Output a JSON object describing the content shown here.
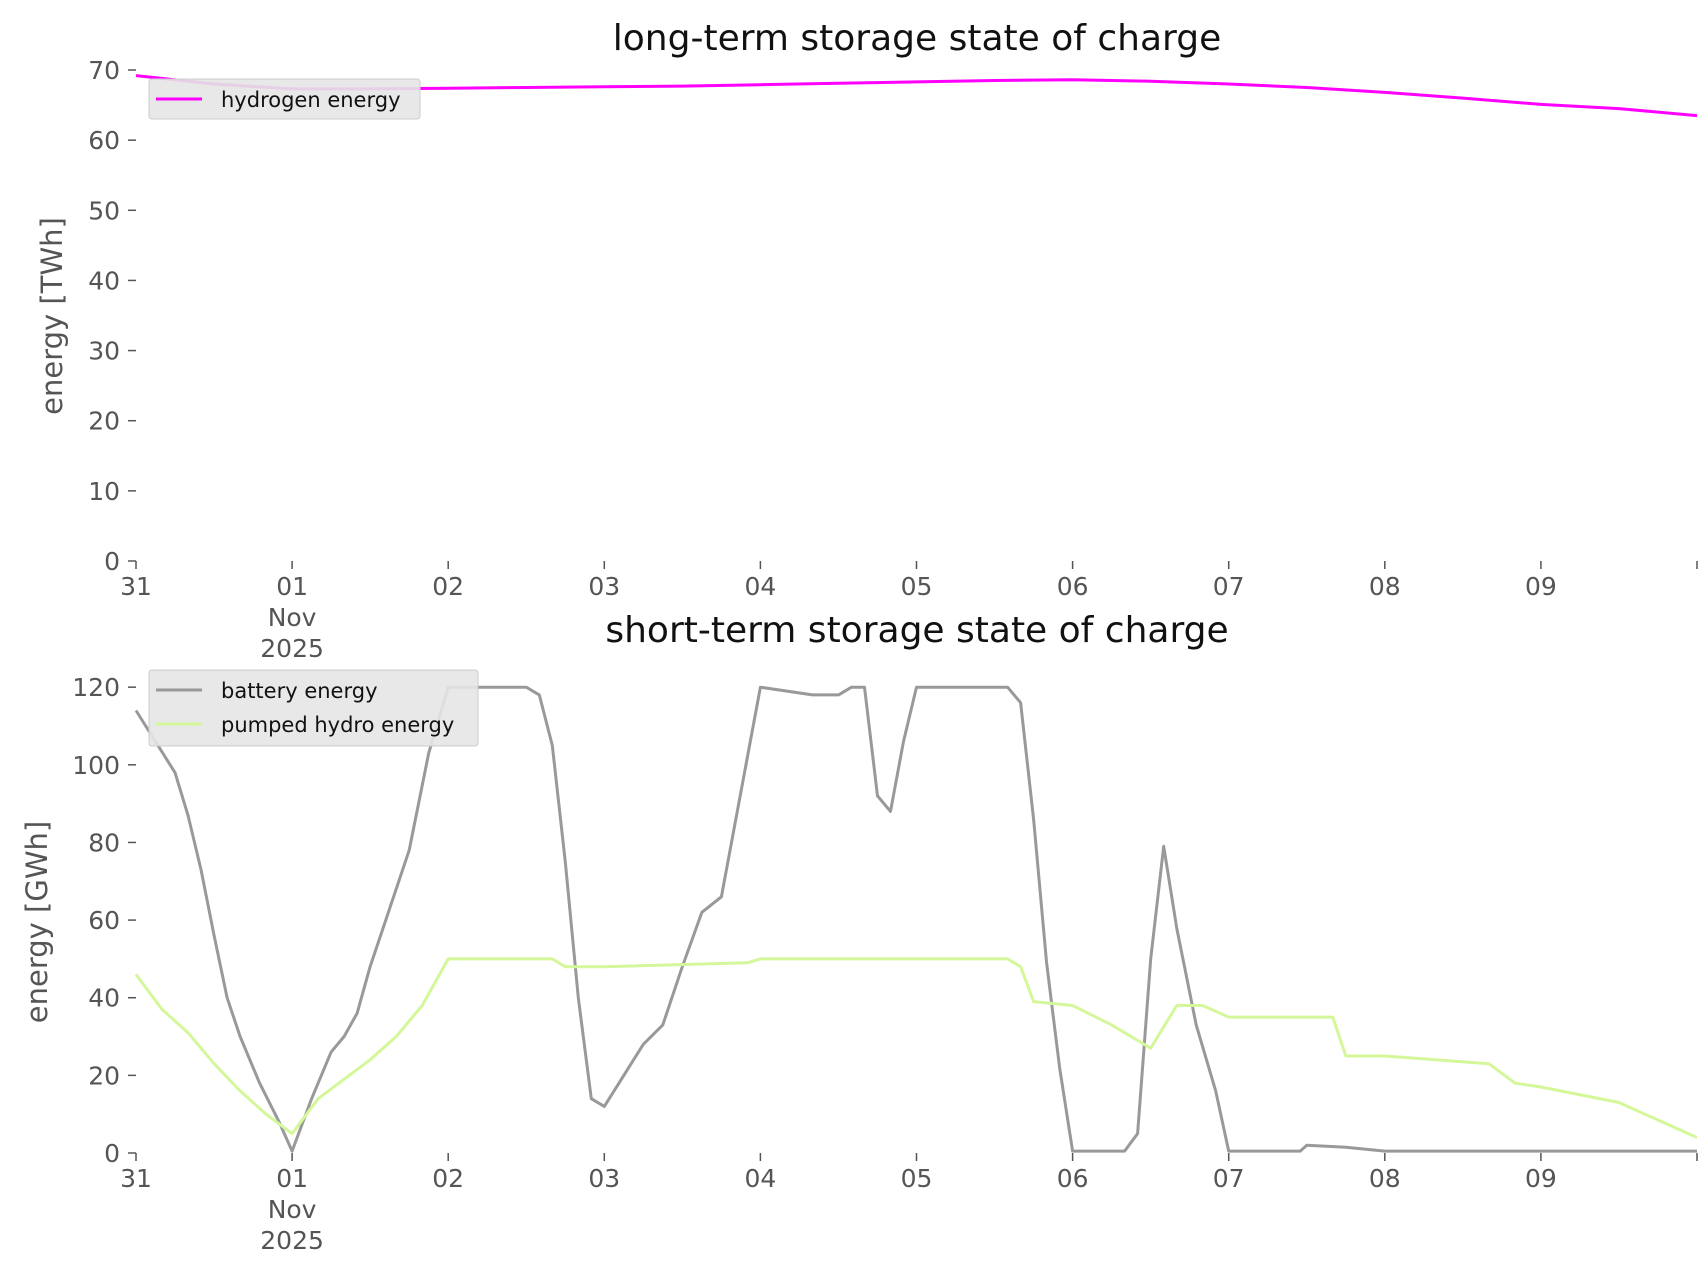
{
  "chart_data": [
    {
      "type": "line",
      "title": "long-term storage state of charge",
      "ylabel": "energy [TWh]",
      "xlabel": "",
      "ylim": [
        0,
        70
      ],
      "yticks": [
        0,
        10,
        20,
        30,
        40,
        50,
        60,
        70
      ],
      "xlim": [
        "2025-10-31",
        "2025-11-10"
      ],
      "xticks": [
        {
          "x": "2025-10-31",
          "label": "31"
        },
        {
          "x": "2025-11-01",
          "label": "01\nNov\n2025"
        },
        {
          "x": "2025-11-02",
          "label": "02"
        },
        {
          "x": "2025-11-03",
          "label": "03"
        },
        {
          "x": "2025-11-04",
          "label": "04"
        },
        {
          "x": "2025-11-05",
          "label": "05"
        },
        {
          "x": "2025-11-06",
          "label": "06"
        },
        {
          "x": "2025-11-07",
          "label": "07"
        },
        {
          "x": "2025-11-08",
          "label": "08"
        },
        {
          "x": "2025-11-09",
          "label": "09"
        },
        {
          "x": "2025-11-10",
          "label": ""
        }
      ],
      "grid": false,
      "legend": "top-left",
      "series": [
        {
          "name": "hydrogen energy",
          "color": "#ff00ff",
          "x": [
            "2025-10-31T00:00",
            "2025-10-31T12:00",
            "2025-11-01T00:00",
            "2025-11-01T12:00",
            "2025-11-02T00:00",
            "2025-11-02T12:00",
            "2025-11-03T00:00",
            "2025-11-03T12:00",
            "2025-11-04T00:00",
            "2025-11-04T12:00",
            "2025-11-05T00:00",
            "2025-11-05T12:00",
            "2025-11-06T00:00",
            "2025-11-06T12:00",
            "2025-11-07T00:00",
            "2025-11-07T12:00",
            "2025-11-08T00:00",
            "2025-11-08T12:00",
            "2025-11-09T00:00",
            "2025-11-09T12:00",
            "2025-11-10T00:00"
          ],
          "y": [
            69.2,
            68.0,
            67.3,
            67.3,
            67.4,
            67.5,
            67.6,
            67.7,
            67.9,
            68.1,
            68.3,
            68.5,
            68.6,
            68.4,
            68.0,
            67.5,
            66.8,
            66.0,
            65.1,
            64.5,
            63.5
          ]
        }
      ]
    },
    {
      "type": "line",
      "title": "short-term storage state of charge",
      "ylabel": "energy [GWh]",
      "xlabel": "",
      "ylim": [
        0,
        127
      ],
      "yticks": [
        0,
        20,
        40,
        60,
        80,
        100,
        120
      ],
      "xlim": [
        "2025-10-31",
        "2025-11-10"
      ],
      "xticks": [
        {
          "x": "2025-10-31",
          "label": "31"
        },
        {
          "x": "2025-11-01",
          "label": "01\nNov\n2025"
        },
        {
          "x": "2025-11-02",
          "label": "02"
        },
        {
          "x": "2025-11-03",
          "label": "03"
        },
        {
          "x": "2025-11-04",
          "label": "04"
        },
        {
          "x": "2025-11-05",
          "label": "05"
        },
        {
          "x": "2025-11-06",
          "label": "06"
        },
        {
          "x": "2025-11-07",
          "label": "07"
        },
        {
          "x": "2025-11-08",
          "label": "08"
        },
        {
          "x": "2025-11-09",
          "label": "09"
        },
        {
          "x": "2025-11-10",
          "label": ""
        }
      ],
      "grid": false,
      "legend": "top-left",
      "series": [
        {
          "name": "battery energy",
          "color": "#999999",
          "x": [
            "2025-10-31T00:00",
            "2025-10-31T06:00",
            "2025-10-31T08:00",
            "2025-10-31T10:00",
            "2025-10-31T12:00",
            "2025-10-31T14:00",
            "2025-10-31T16:00",
            "2025-10-31T19:00",
            "2025-10-31T22:00",
            "2025-11-01T00:00",
            "2025-11-01T03:00",
            "2025-11-01T06:00",
            "2025-11-01T08:00",
            "2025-11-01T10:00",
            "2025-11-01T12:00",
            "2025-11-01T15:00",
            "2025-11-01T18:00",
            "2025-11-01T21:00",
            "2025-11-02T00:00",
            "2025-11-02T12:00",
            "2025-11-02T14:00",
            "2025-11-02T16:00",
            "2025-11-02T18:00",
            "2025-11-02T20:00",
            "2025-11-02T22:00",
            "2025-11-03T00:00",
            "2025-11-03T03:00",
            "2025-11-03T06:00",
            "2025-11-03T09:00",
            "2025-11-03T12:00",
            "2025-11-03T15:00",
            "2025-11-03T18:00",
            "2025-11-03T21:00",
            "2025-11-04T00:00",
            "2025-11-04T08:00",
            "2025-11-04T12:00",
            "2025-11-04T14:00",
            "2025-11-04T16:00",
            "2025-11-04T18:00",
            "2025-11-04T20:00",
            "2025-11-04T22:00",
            "2025-11-05T00:00",
            "2025-11-05T14:00",
            "2025-11-05T16:00",
            "2025-11-05T18:00",
            "2025-11-05T20:00",
            "2025-11-05T22:00",
            "2025-11-06T00:00",
            "2025-11-06T08:00",
            "2025-11-06T10:00",
            "2025-11-06T12:00",
            "2025-11-06T14:00",
            "2025-11-06T16:00",
            "2025-11-06T19:00",
            "2025-11-06T22:00",
            "2025-11-07T00:00",
            "2025-11-07T11:00",
            "2025-11-07T12:00",
            "2025-11-07T18:00",
            "2025-11-08T00:00",
            "2025-11-10T00:00"
          ],
          "y": [
            114,
            98,
            87,
            73,
            56,
            40,
            30,
            18,
            8,
            0.5,
            14,
            26,
            30,
            36,
            48,
            63,
            78,
            103,
            120,
            120,
            118,
            105,
            75,
            40,
            14,
            12,
            20,
            28,
            33,
            48,
            62,
            66,
            93,
            120,
            118,
            118,
            120,
            120,
            92,
            88,
            106,
            120,
            120,
            116,
            86,
            49,
            22,
            0.5,
            0.5,
            5,
            50,
            79,
            58,
            33,
            16,
            0.5,
            0.5,
            2,
            1.5,
            0.5,
            0.5
          ]
        },
        {
          "name": "pumped hydro energy",
          "color": "#d4f79a",
          "x": [
            "2025-10-31T00:00",
            "2025-10-31T04:00",
            "2025-10-31T08:00",
            "2025-10-31T12:00",
            "2025-10-31T16:00",
            "2025-10-31T20:00",
            "2025-11-01T00:00",
            "2025-11-01T04:00",
            "2025-11-01T08:00",
            "2025-11-01T12:00",
            "2025-11-01T16:00",
            "2025-11-01T20:00",
            "2025-11-02T00:00",
            "2025-11-02T16:00",
            "2025-11-02T18:00",
            "2025-11-03T00:00",
            "2025-11-03T22:00",
            "2025-11-04T00:00",
            "2025-11-05T14:00",
            "2025-11-05T16:00",
            "2025-11-05T18:00",
            "2025-11-06T00:00",
            "2025-11-06T06:00",
            "2025-11-06T12:00",
            "2025-11-06T16:00",
            "2025-11-06T20:00",
            "2025-11-07T00:00",
            "2025-11-07T16:00",
            "2025-11-07T18:00",
            "2025-11-08T00:00",
            "2025-11-08T16:00",
            "2025-11-08T20:00",
            "2025-11-09T00:00",
            "2025-11-09T12:00",
            "2025-11-10T00:00"
          ],
          "y": [
            46,
            37,
            31,
            23,
            16,
            10,
            5,
            14,
            19,
            24,
            30,
            38,
            50,
            50,
            48,
            48,
            49,
            50,
            50,
            48,
            39,
            38,
            33,
            27,
            38,
            38,
            35,
            35,
            25,
            25,
            23,
            18,
            17,
            13,
            4
          ]
        }
      ]
    }
  ]
}
